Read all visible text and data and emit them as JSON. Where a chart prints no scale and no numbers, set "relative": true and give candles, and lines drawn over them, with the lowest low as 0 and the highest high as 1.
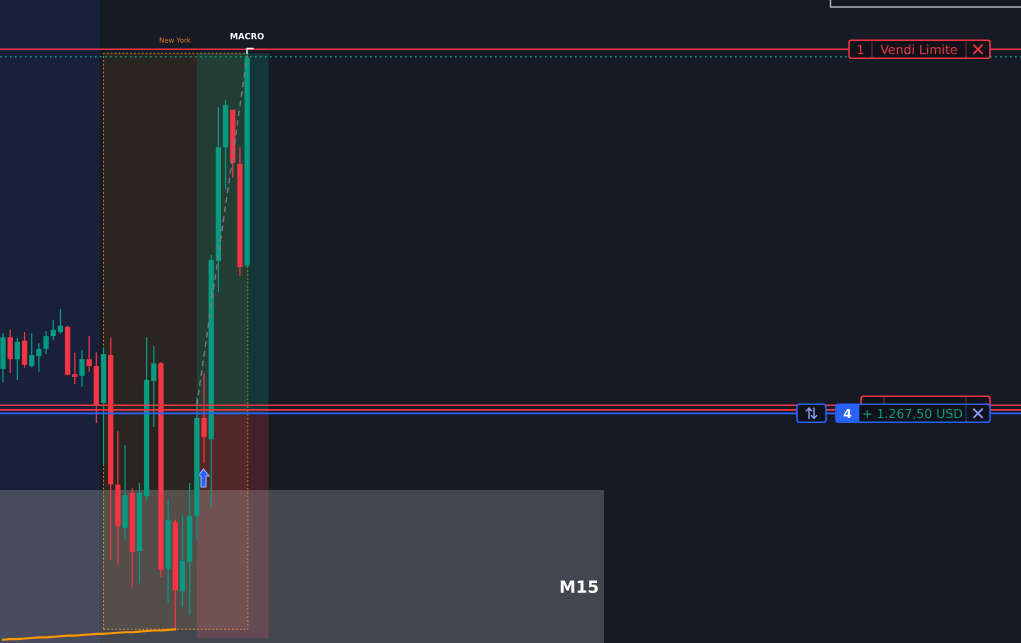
{
  "chart_data": {
    "type": "candlestick",
    "relative": true,
    "categories": [
      null,
      null,
      null,
      null,
      null,
      null,
      null,
      null,
      null,
      null,
      null,
      null,
      null,
      null,
      null,
      null,
      null,
      null,
      null,
      null,
      null,
      null,
      null,
      null,
      null,
      null,
      null,
      null,
      null,
      null,
      null,
      null,
      null,
      null,
      null
    ],
    "ohlc": [
      [
        0.452,
        0.514,
        0.429,
        0.507
      ],
      [
        0.507,
        0.52,
        0.445,
        0.469
      ],
      [
        0.469,
        0.506,
        0.433,
        0.499
      ],
      [
        0.501,
        0.516,
        0.454,
        0.459
      ],
      [
        0.457,
        0.514,
        0.455,
        0.476
      ],
      [
        0.474,
        0.497,
        0.447,
        0.487
      ],
      [
        0.487,
        0.518,
        0.478,
        0.509
      ],
      [
        0.509,
        0.537,
        0.502,
        0.52
      ],
      [
        0.516,
        0.556,
        0.513,
        0.527
      ],
      [
        0.525,
        0.527,
        0.441,
        0.442
      ],
      [
        0.443,
        0.48,
        0.426,
        0.438
      ],
      [
        0.44,
        0.485,
        0.421,
        0.469
      ],
      [
        0.469,
        0.509,
        0.447,
        0.457
      ],
      [
        0.457,
        0.481,
        0.358,
        0.388
      ],
      [
        0.393,
        0.49,
        0.285,
        0.478
      ],
      [
        0.476,
        0.506,
        0.12,
        0.252
      ],
      [
        0.251,
        0.344,
        0.112,
        0.179
      ],
      [
        0.176,
        0.32,
        0.155,
        0.233
      ],
      [
        0.237,
        0.245,
        0.073,
        0.134
      ],
      [
        0.136,
        0.254,
        0.08,
        0.237
      ],
      [
        0.231,
        0.507,
        0.224,
        0.433
      ],
      [
        0.431,
        0.492,
        0.351,
        0.462
      ],
      [
        0.462,
        0.464,
        0.091,
        0.103
      ],
      [
        0.105,
        0.224,
        0.047,
        0.19
      ],
      [
        0.186,
        0.19,
        0,
        0.068
      ],
      [
        0.066,
        0.198,
        0.039,
        0.119
      ],
      [
        0.117,
        0.254,
        0.025,
        0.197
      ],
      [
        0.197,
        0.403,
        0.155,
        0.367
      ],
      [
        0.367,
        0.445,
        0.289,
        0.334
      ],
      [
        0.33,
        0.65,
        0.211,
        0.641
      ],
      [
        0.639,
        0.907,
        0.586,
        0.837
      ],
      [
        0.837,
        0.919,
        0.763,
        0.91
      ],
      [
        0.902,
        0.902,
        0.784,
        0.81
      ],
      [
        0.808,
        0.837,
        0.613,
        0.629
      ],
      [
        0.631,
        1,
        0.629,
        0.992
      ]
    ],
    "colors": [
      "#089981",
      "#f23645",
      "#089981",
      "#f23645",
      "#089981",
      "#089981",
      "#089981",
      "#089981",
      "#089981",
      "#f23645",
      "#f23645",
      "#089981",
      "#f23645",
      "#f23645",
      "#089981",
      "#f23645",
      "#f23645",
      "#089981",
      "#f23645",
      "#089981",
      "#089981",
      "#089981",
      "#f23645",
      "#089981",
      "#f23645",
      "#089981",
      "#089981",
      "#089981",
      "#f23645",
      "#089981",
      "#089981",
      "#089981",
      "#f23645",
      "#f23645",
      "#089981"
    ],
    "series": [
      {
        "type": "line",
        "color": "#ff9800",
        "values": [
          -0.018,
          -0.017,
          -0.017,
          -0.016,
          -0.015,
          -0.014,
          -0.014,
          -0.013,
          -0.012,
          -0.011,
          -0.011,
          -0.01,
          -0.009,
          -0.008,
          -0.008,
          -0.007,
          -0.006,
          -0.005,
          -0.005,
          -0.004,
          -0.003,
          -0.002,
          -0.002,
          -0.001,
          0,
          null,
          null,
          null,
          null,
          null,
          null,
          null,
          null,
          null,
          null
        ]
      },
      {
        "type": "line",
        "color": "#787b86",
        "line_style": "dashed",
        "values": [
          null,
          null,
          null,
          null,
          null,
          null,
          null,
          null,
          null,
          null,
          null,
          null,
          null,
          null,
          null,
          null,
          null,
          null,
          null,
          null,
          null,
          null,
          null,
          null,
          null,
          null,
          null,
          0.39,
          0.476,
          0.563,
          0.649,
          0.736,
          0.822,
          0.909,
          0.995
        ]
      }
    ],
    "ref_lines": [
      {
        "axis": "y",
        "value": 1.007,
        "label": "Vendi Limite",
        "color": "#f23645"
      },
      {
        "axis": "y",
        "value": 0.994,
        "color": "#089981",
        "line_style": "dotted"
      },
      {
        "axis": "y",
        "value": 0.389,
        "color": "#f23645"
      },
      {
        "axis": "y",
        "value": 0.381,
        "color": "#f23645"
      },
      {
        "axis": "y",
        "value": 0.375,
        "label": "+ 1.267,50 USD",
        "color": "#2962ff"
      }
    ],
    "bands": [
      {
        "axis": "y",
        "from": -0.024,
        "to": 0.242,
        "label": "M15",
        "color": "#cfcbca"
      }
    ],
    "annotations": [
      "New York",
      "MACRO",
      "1",
      "4"
    ]
  }
}
